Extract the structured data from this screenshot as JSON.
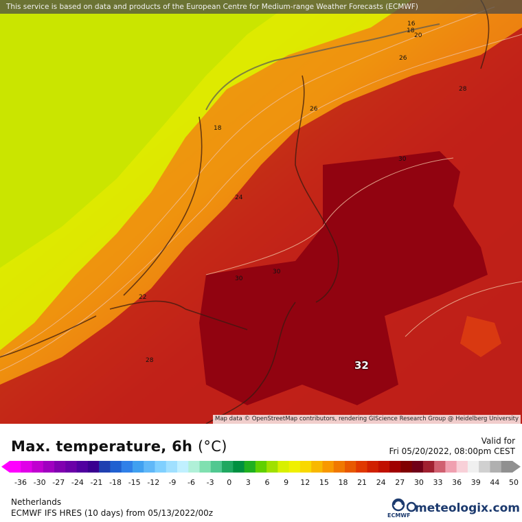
{
  "map": {
    "banner": "This service is based on data and products of the European Centre for Medium-range Weather Forecasts (ECMWF)",
    "attribution": "Map data © OpenStreetMap contributors, rendering GIScience Research Group @ Heidelberg University",
    "contour_labels": [
      "16",
      "18",
      "20",
      "26",
      "28",
      "26",
      "18",
      "30",
      "24",
      "30",
      "30",
      "22",
      "28"
    ],
    "highlight_value": "32"
  },
  "legend": {
    "title": "Max. temperature, 6h",
    "unit": "(°C)",
    "valid_label": "Valid for",
    "valid_time": "Fri 05/20/2022, 08:00pm CEST",
    "ticks": [
      "-36",
      "-30",
      "-27",
      "-24",
      "-21",
      "-18",
      "-15",
      "-12",
      "-9",
      "-6",
      "-3",
      "0",
      "3",
      "6",
      "9",
      "12",
      "15",
      "18",
      "21",
      "24",
      "27",
      "30",
      "33",
      "36",
      "39",
      "44",
      "50"
    ],
    "colors": [
      "#ff00ff",
      "#e000e8",
      "#c000d0",
      "#a000c0",
      "#8000b0",
      "#6a00a8",
      "#5000a0",
      "#3a0090",
      "#2040b0",
      "#2060d0",
      "#3080e8",
      "#40a0f0",
      "#60b8f8",
      "#80d0ff",
      "#a0e0ff",
      "#c0f0ff",
      "#b0f0d8",
      "#80e0b0",
      "#50c890",
      "#20a860",
      "#009040",
      "#20b020",
      "#60d000",
      "#a0e000",
      "#d8f000",
      "#f0f000",
      "#f8d800",
      "#f8b800",
      "#f89800",
      "#f07800",
      "#e85800",
      "#e03800",
      "#d02000",
      "#c01000",
      "#a00000",
      "#800000",
      "#700018",
      "#a02030",
      "#d06070",
      "#f0a0b0",
      "#f8d0d8",
      "#f0f0f0",
      "#d0d0d0",
      "#b0b0b0",
      "#909090"
    ]
  },
  "footer": {
    "region": "Netherlands",
    "model": "ECMWF IFS HRES (10 days) from 05/13/2022/00z",
    "ecmwf": "ECMWF",
    "brand": "meteologix.com"
  }
}
